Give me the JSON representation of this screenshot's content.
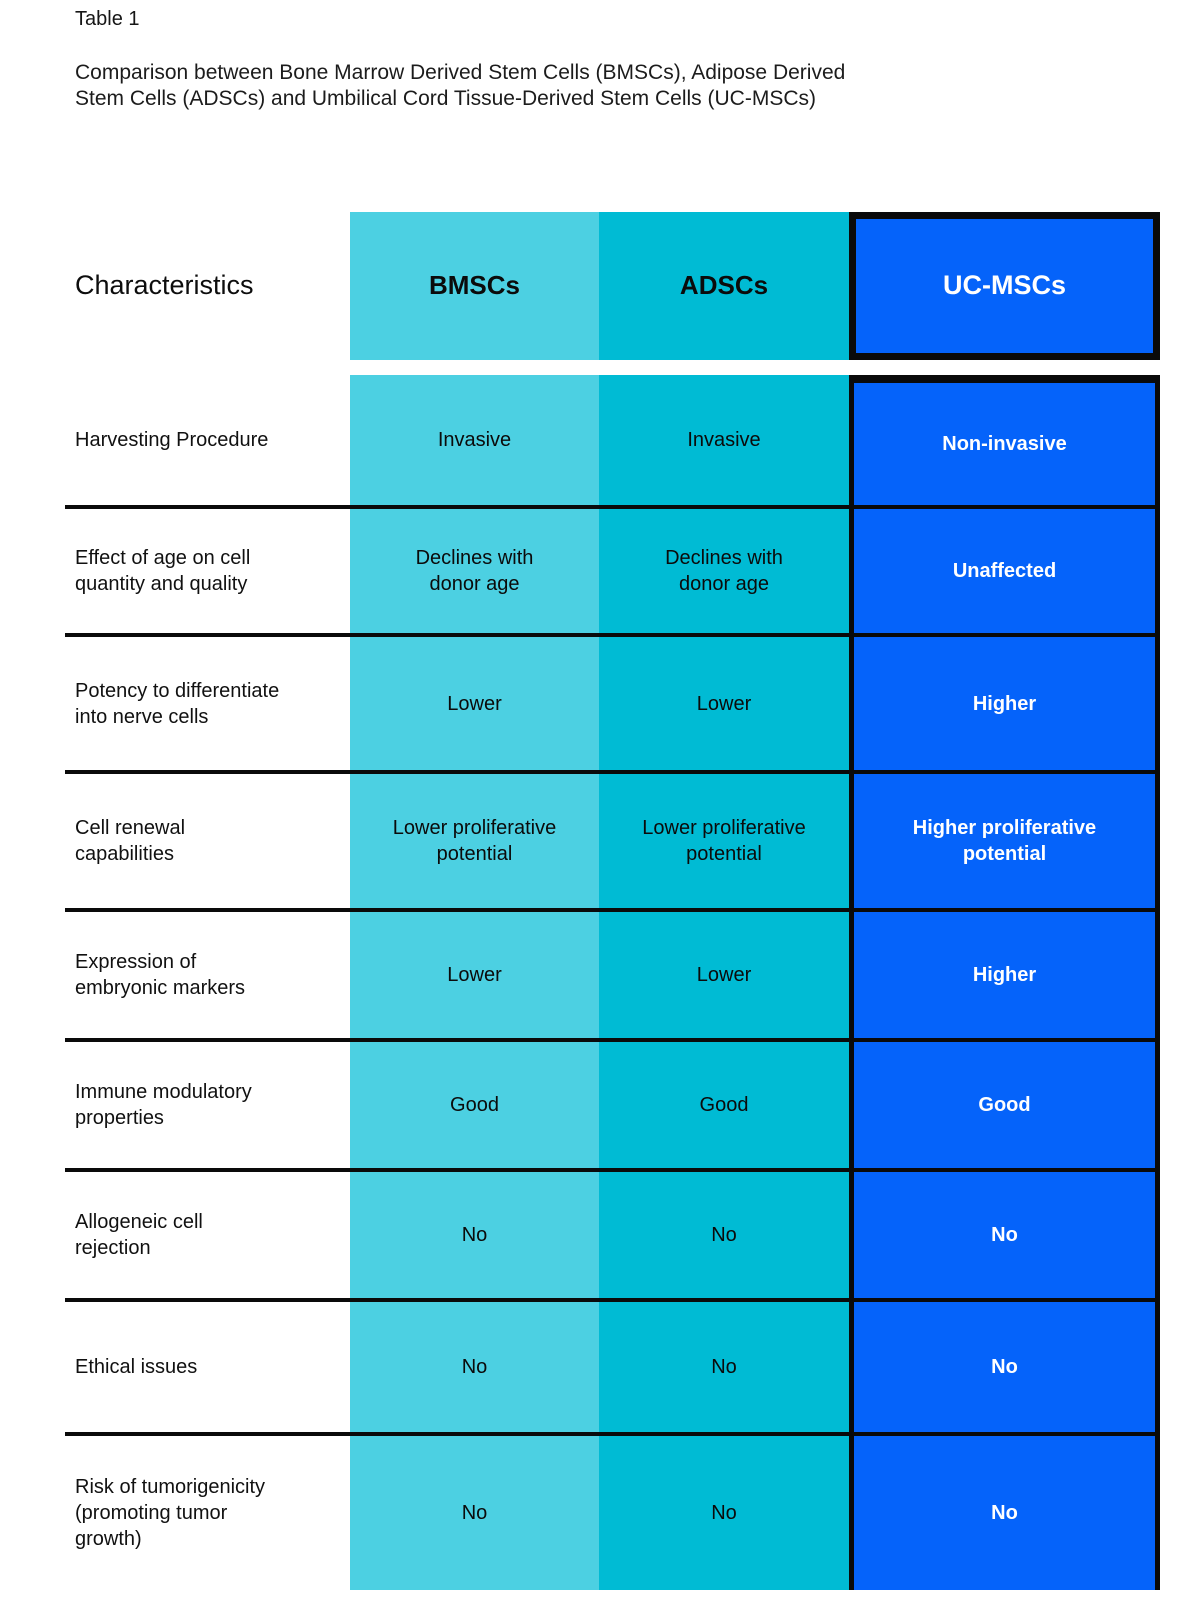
{
  "page": {
    "title": "Table 1",
    "caption": "Comparison between Bone Marrow Derived Stem Cells (BMSCs), Adipose Derived\nStem Cells (ADSCs) and Umbilical Cord Tissue-Derived Stem Cells (UC-MSCs)"
  },
  "table": {
    "header": {
      "characteristics": "Characteristics",
      "columns": [
        "BMSCs",
        "ADSCs",
        "UC-MSCs"
      ]
    },
    "rows": [
      {
        "label": "Harvesting Procedure",
        "bmsc": "Invasive",
        "adsc": "Invasive",
        "ucmsc": "Non-invasive"
      },
      {
        "label": "Effect of age on cell\nquantity and quality",
        "bmsc": "Declines with\ndonor age",
        "adsc": "Declines with\ndonor age",
        "ucmsc": "Unaffected"
      },
      {
        "label": "Potency to differentiate\ninto nerve cells",
        "bmsc": "Lower",
        "adsc": "Lower",
        "ucmsc": "Higher"
      },
      {
        "label": "Cell renewal\ncapabilities",
        "bmsc": "Lower proliferative\npotential",
        "adsc": "Lower proliferative\npotential",
        "ucmsc": "Higher proliferative\npotential"
      },
      {
        "label": "Expression of\nembryonic markers",
        "bmsc": "Lower",
        "adsc": "Lower",
        "ucmsc": "Higher"
      },
      {
        "label": "Immune modulatory\nproperties",
        "bmsc": "Good",
        "adsc": "Good",
        "ucmsc": "Good"
      },
      {
        "label": "Allogeneic cell\nrejection",
        "bmsc": "No",
        "adsc": "No",
        "ucmsc": "No"
      },
      {
        "label": "Ethical issues",
        "bmsc": "No",
        "adsc": "No",
        "ucmsc": "No"
      },
      {
        "label": "Risk of tumorigenicity\n(promoting tumor\ngrowth)",
        "bmsc": "No",
        "adsc": "No",
        "ucmsc": "No"
      }
    ]
  },
  "colors": {
    "bmsc": "#4CD0E2",
    "adsc": "#00BBD4",
    "ucmsc": "#0563FA",
    "border": "#0a0a0a"
  }
}
